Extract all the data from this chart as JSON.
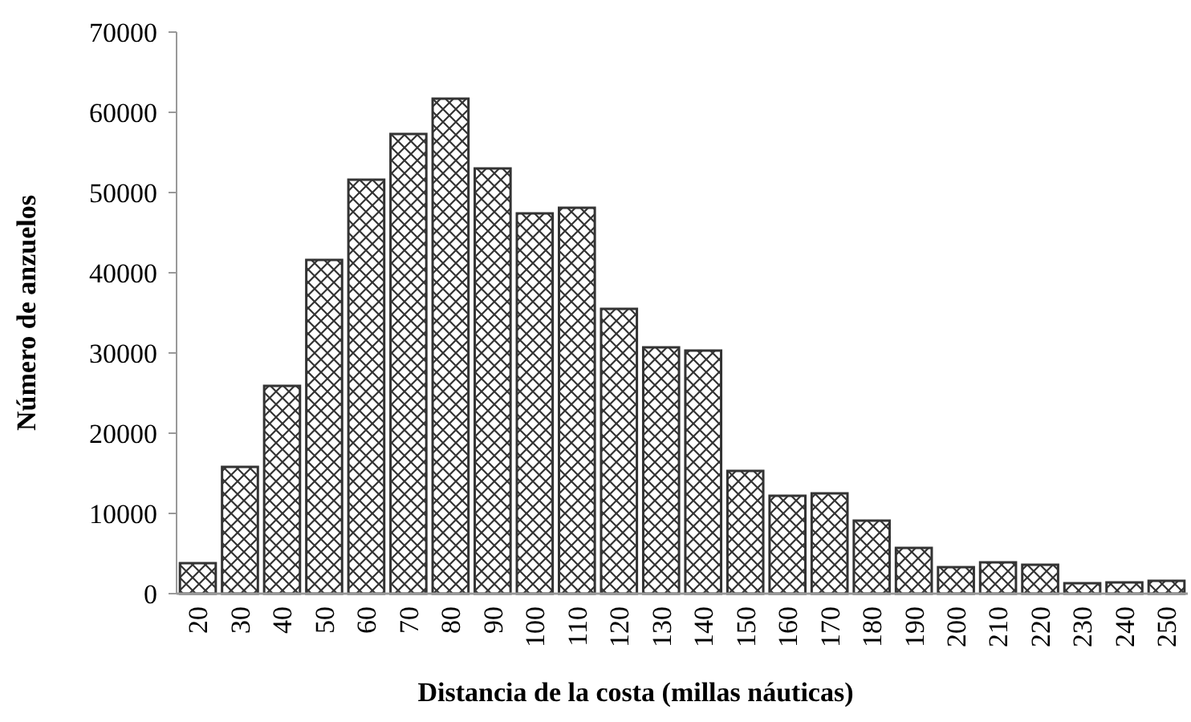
{
  "chart_data": {
    "type": "bar",
    "xlabel": "Distancia de la costa (millas náuticas)",
    "ylabel": "Número de anzuelos",
    "categories": [
      "20",
      "30",
      "40",
      "50",
      "60",
      "70",
      "80",
      "90",
      "100",
      "110",
      "120",
      "130",
      "140",
      "150",
      "160",
      "170",
      "180",
      "190",
      "200",
      "210",
      "220",
      "230",
      "240",
      "250"
    ],
    "values": [
      3800,
      15800,
      25900,
      41600,
      51600,
      57300,
      61700,
      53000,
      47400,
      48100,
      35500,
      30700,
      30300,
      15300,
      12200,
      12500,
      9100,
      5700,
      3300,
      3900,
      3600,
      1300,
      1400,
      1600
    ],
    "color": "#333333",
    "ylim": [
      0,
      70000
    ],
    "yticks": [
      0,
      10000,
      20000,
      30000,
      40000,
      50000,
      60000,
      70000
    ],
    "grid": false
  }
}
